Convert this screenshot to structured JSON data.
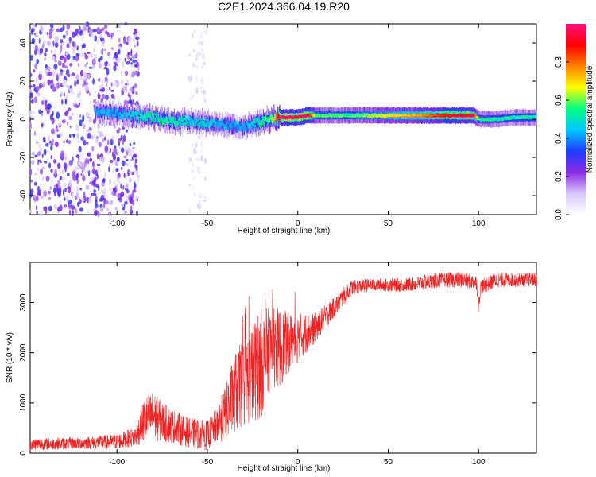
{
  "title": "C2E1.2024.366.04.19.R20",
  "colors": {
    "snr_line": "#ee2222",
    "axis": "#000000",
    "colorscale": [
      "#ffffff",
      "#d8c8ff",
      "#8a2be2",
      "#1e3cff",
      "#00c8ff",
      "#00ff80",
      "#ffff00",
      "#ff8000",
      "#ff0000",
      "#ff1080"
    ]
  },
  "chart_data": [
    {
      "type": "heatmap",
      "xlabel": "Height of straight line (km)",
      "ylabel": "Frequency (Hz)",
      "xlim": [
        -148,
        132
      ],
      "ylim": [
        -50,
        50
      ],
      "xticks": [
        -100,
        -50,
        0,
        50,
        100
      ],
      "yticks": [
        -40,
        -20,
        0,
        20,
        40
      ],
      "colorbar": {
        "label": "Normalized spectral amplitude",
        "range": [
          0,
          1
        ],
        "ticks": [
          0.0,
          0.2,
          0.4,
          0.6,
          0.8
        ]
      },
      "ridge": {
        "x": [
          -112,
          -100,
          -90,
          -80,
          -70,
          -60,
          -50,
          -40,
          -30,
          -25,
          -20,
          -15,
          -10,
          -5,
          0,
          5,
          10,
          20,
          30,
          40,
          50,
          60,
          70,
          80,
          90,
          97,
          100,
          110,
          120,
          132
        ],
        "freq": [
          4,
          3,
          2,
          1,
          -1,
          -1,
          -2,
          -3,
          -4,
          -3,
          -1,
          0,
          1,
          1,
          1,
          2,
          2,
          2,
          2,
          2,
          2,
          2,
          2,
          2,
          2,
          2,
          0,
          0,
          1,
          1
        ],
        "amplitude": [
          0.4,
          0.4,
          0.45,
          0.5,
          0.5,
          0.45,
          0.45,
          0.4,
          0.4,
          0.45,
          0.5,
          0.55,
          0.95,
          0.95,
          0.9,
          0.95,
          0.55,
          0.55,
          0.55,
          0.6,
          0.65,
          0.7,
          0.75,
          0.85,
          0.9,
          0.9,
          0.5,
          0.5,
          0.5,
          0.5
        ]
      },
      "noise_regions": [
        {
          "x": [
            -148,
            -88
          ],
          "freq": [
            -50,
            50
          ],
          "amplitude": 0.25
        },
        {
          "x": [
            -60,
            -50
          ],
          "freq": [
            -50,
            50
          ],
          "amplitude": 0.08
        }
      ]
    },
    {
      "type": "line",
      "xlabel": "Height of straight line (km)",
      "ylabel": "SNR (10 * v/v)",
      "xlim": [
        -148,
        132
      ],
      "ylim": [
        0,
        3800
      ],
      "xticks": [
        -100,
        -50,
        0,
        50,
        100
      ],
      "yticks": [
        0,
        1000,
        2000,
        3000
      ],
      "series": [
        {
          "x": [
            -148,
            -120,
            -100,
            -90,
            -85,
            -80,
            -75,
            -70,
            -60,
            -50,
            -45,
            -40,
            -35,
            -30,
            -25,
            -20,
            -15,
            -10,
            -5,
            0,
            5,
            10,
            15,
            20,
            25,
            30,
            40,
            50,
            60,
            70,
            80,
            90,
            99,
            100,
            101,
            110,
            120,
            132
          ],
          "values": [
            180,
            200,
            230,
            320,
            650,
            750,
            620,
            550,
            400,
            350,
            550,
            800,
            1200,
            1400,
            1600,
            1800,
            2100,
            2100,
            2200,
            2300,
            2400,
            2500,
            2700,
            2900,
            3100,
            3300,
            3350,
            3350,
            3350,
            3400,
            3450,
            3450,
            3400,
            2900,
            3300,
            3450,
            3450,
            3450
          ],
          "noise": [
            120,
            120,
            150,
            200,
            450,
            500,
            400,
            350,
            300,
            300,
            350,
            550,
            800,
            900,
            1000,
            1100,
            800,
            800,
            600,
            500,
            400,
            300,
            250,
            200,
            200,
            150,
            130,
            130,
            140,
            150,
            150,
            160,
            150,
            150,
            150,
            150,
            140,
            140
          ]
        }
      ]
    }
  ]
}
